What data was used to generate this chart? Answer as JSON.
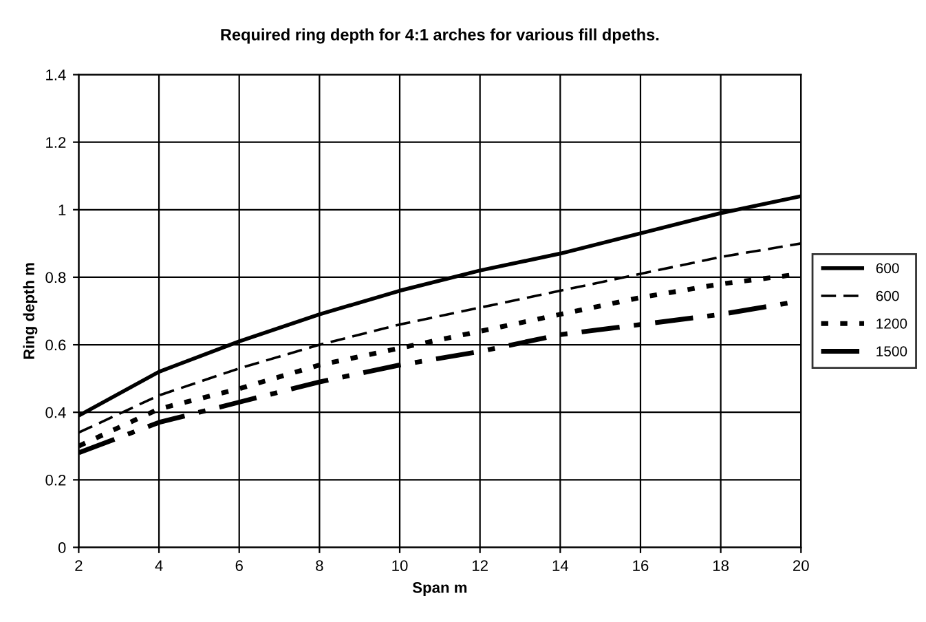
{
  "chart_data": {
    "type": "line",
    "title": "Required ring depth for 4:1 arches for various fill dpeths.",
    "xlabel": "Span m",
    "ylabel": "Ring depth m",
    "x": [
      2,
      4,
      6,
      8,
      10,
      12,
      14,
      16,
      18,
      20
    ],
    "series": [
      {
        "name": "600",
        "color": "#000000",
        "line_style": "solid",
        "values": [
          0.39,
          0.52,
          0.61,
          0.69,
          0.76,
          0.82,
          0.87,
          0.93,
          0.99,
          1.04
        ]
      },
      {
        "name": "600",
        "color": "#000000",
        "line_style": "dashed",
        "values": [
          0.34,
          0.45,
          0.53,
          0.6,
          0.66,
          0.71,
          0.76,
          0.81,
          0.86,
          0.9
        ]
      },
      {
        "name": "1200",
        "color": "#000000",
        "line_style": "dotted",
        "values": [
          0.3,
          0.41,
          0.47,
          0.54,
          0.59,
          0.64,
          0.69,
          0.74,
          0.78,
          0.81
        ]
      },
      {
        "name": "1500",
        "color": "#000000",
        "line_style": "dashdot",
        "values": [
          0.28,
          0.37,
          0.43,
          0.49,
          0.54,
          0.58,
          0.63,
          0.66,
          0.69,
          0.73
        ]
      }
    ],
    "xlim": [
      2,
      20
    ],
    "xticks": [
      2,
      4,
      6,
      8,
      10,
      12,
      14,
      16,
      18,
      20
    ],
    "ylim": [
      0,
      1.4
    ],
    "yticks": [
      0,
      {
        "value": 0.2,
        "label": "0.2"
      },
      {
        "value": 0.4,
        "label": "0.4"
      },
      {
        "value": 0.6,
        "label": "0.6"
      },
      {
        "value": 0.8,
        "label": "0.8"
      },
      1,
      {
        "value": 1.2,
        "label": "1.2"
      },
      {
        "value": 1.4,
        "label": "1.4"
      }
    ],
    "grid": true,
    "legend": "right",
    "marker": "none"
  }
}
